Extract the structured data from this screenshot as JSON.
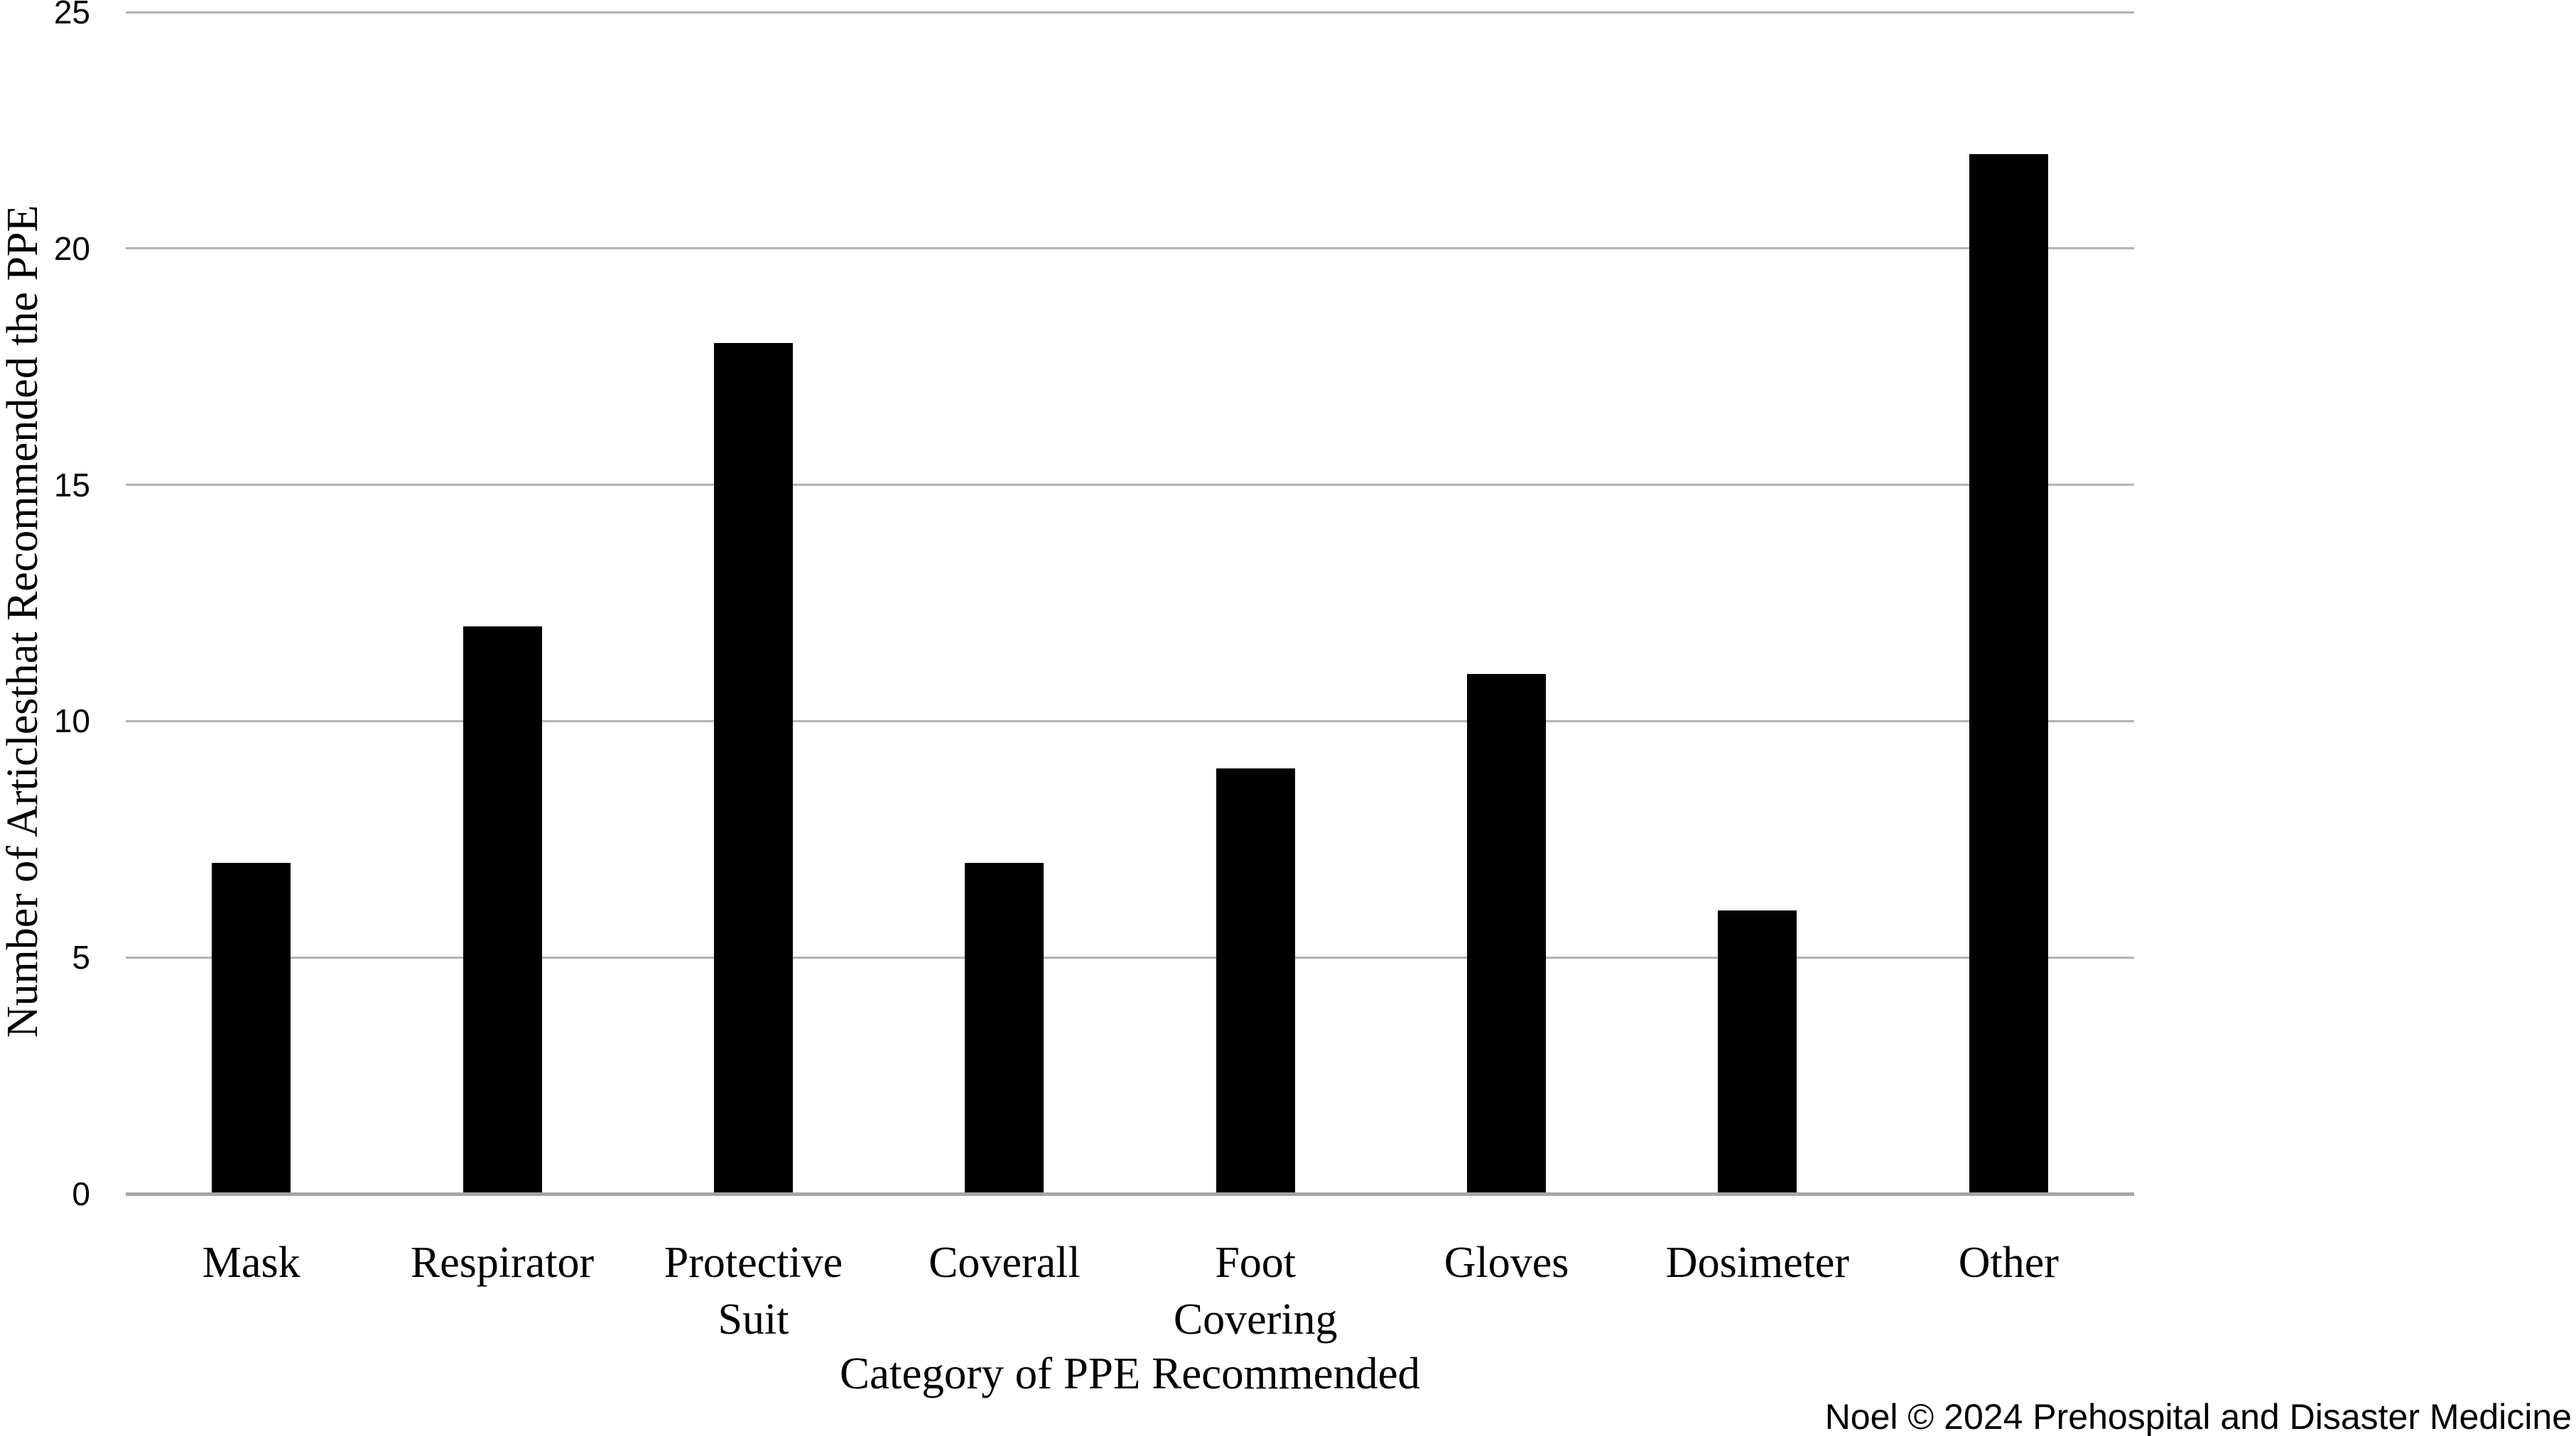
{
  "chart_data": {
    "type": "bar",
    "title": "",
    "xlabel": "Category of PPE Recommended",
    "ylabel": "Number of Articlesthat Recommended the PPE",
    "categories": [
      "Mask",
      "Respirator",
      "Protective\nSuit",
      "Coverall",
      "Foot\nCovering",
      "Gloves",
      "Dosimeter",
      "Other"
    ],
    "values": [
      7,
      12,
      18,
      7,
      9,
      11,
      6,
      22
    ],
    "ylim": [
      0,
      25
    ],
    "yticks": [
      0,
      5,
      10,
      15,
      20,
      25
    ],
    "grid": "horizontal",
    "legend": "none",
    "bar_color": "#000000",
    "gridline_color": "#b3b3b3",
    "axis_line_color": "#a6a6a6"
  },
  "attribution": "Noel © 2024 Prehospital and Disaster Medicine"
}
